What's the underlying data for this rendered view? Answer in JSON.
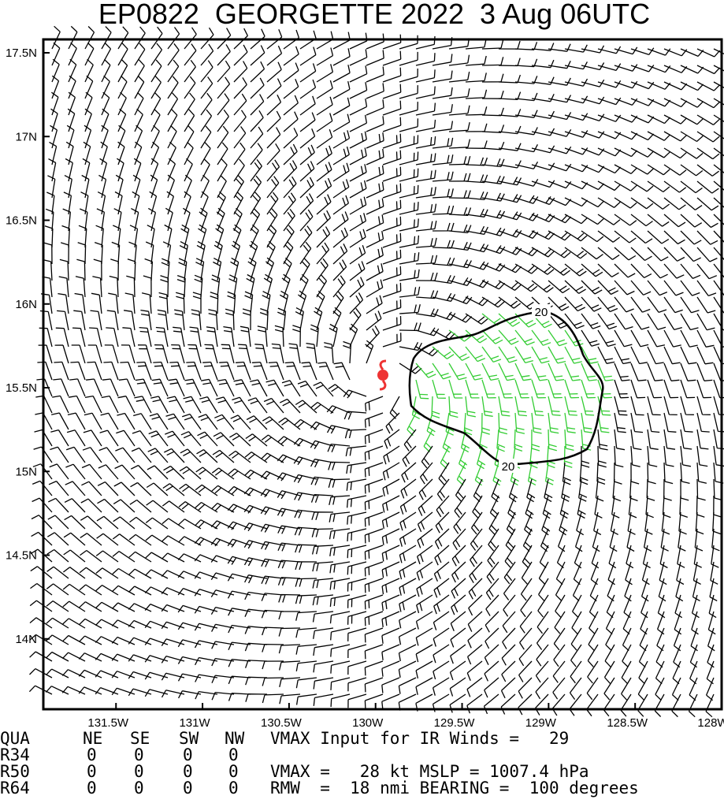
{
  "title": "EP0822  GEORGETTE 2022  3 Aug 06UTC",
  "xlim": [
    -131.92,
    -128.0
  ],
  "ylim": [
    13.58,
    17.58
  ],
  "xticks": [
    {
      "value": -131.5,
      "label": "131.5W"
    },
    {
      "value": -131,
      "label": "131W"
    },
    {
      "value": -130.5,
      "label": "130.5W"
    },
    {
      "value": -130,
      "label": "130W"
    },
    {
      "value": -129.5,
      "label": "129.5W"
    },
    {
      "value": -129,
      "label": "129W"
    },
    {
      "value": -128.5,
      "label": "128.5W"
    },
    {
      "value": -128,
      "label": "128W"
    }
  ],
  "yticks": [
    {
      "value": 17.5,
      "label": "17.5N"
    },
    {
      "value": 17,
      "label": "17N"
    },
    {
      "value": 16.5,
      "label": "16.5N"
    },
    {
      "value": 16,
      "label": "16N"
    },
    {
      "value": 15.5,
      "label": "15.5N"
    },
    {
      "value": 15,
      "label": "15N"
    },
    {
      "value": 14.5,
      "label": "14.5N"
    },
    {
      "value": 14,
      "label": "14N"
    }
  ],
  "contour_labels": [
    "20",
    "20"
  ],
  "table": {
    "header": [
      "QUA",
      "NE",
      "SE",
      "SW",
      "NW"
    ],
    "rows": [
      [
        "R34",
        "0",
        "0",
        "0",
        "0"
      ],
      [
        "R50",
        "0",
        "0",
        "0",
        "0"
      ],
      [
        "R64",
        "0",
        "0",
        "0",
        "0"
      ]
    ]
  },
  "info": [
    "VMAX Input for IR Winds =   29",
    "VMAX =   28 kt MSLP = 1007.4 hPa",
    "RMW  =  18 nmi BEARING =  100 degrees"
  ]
}
